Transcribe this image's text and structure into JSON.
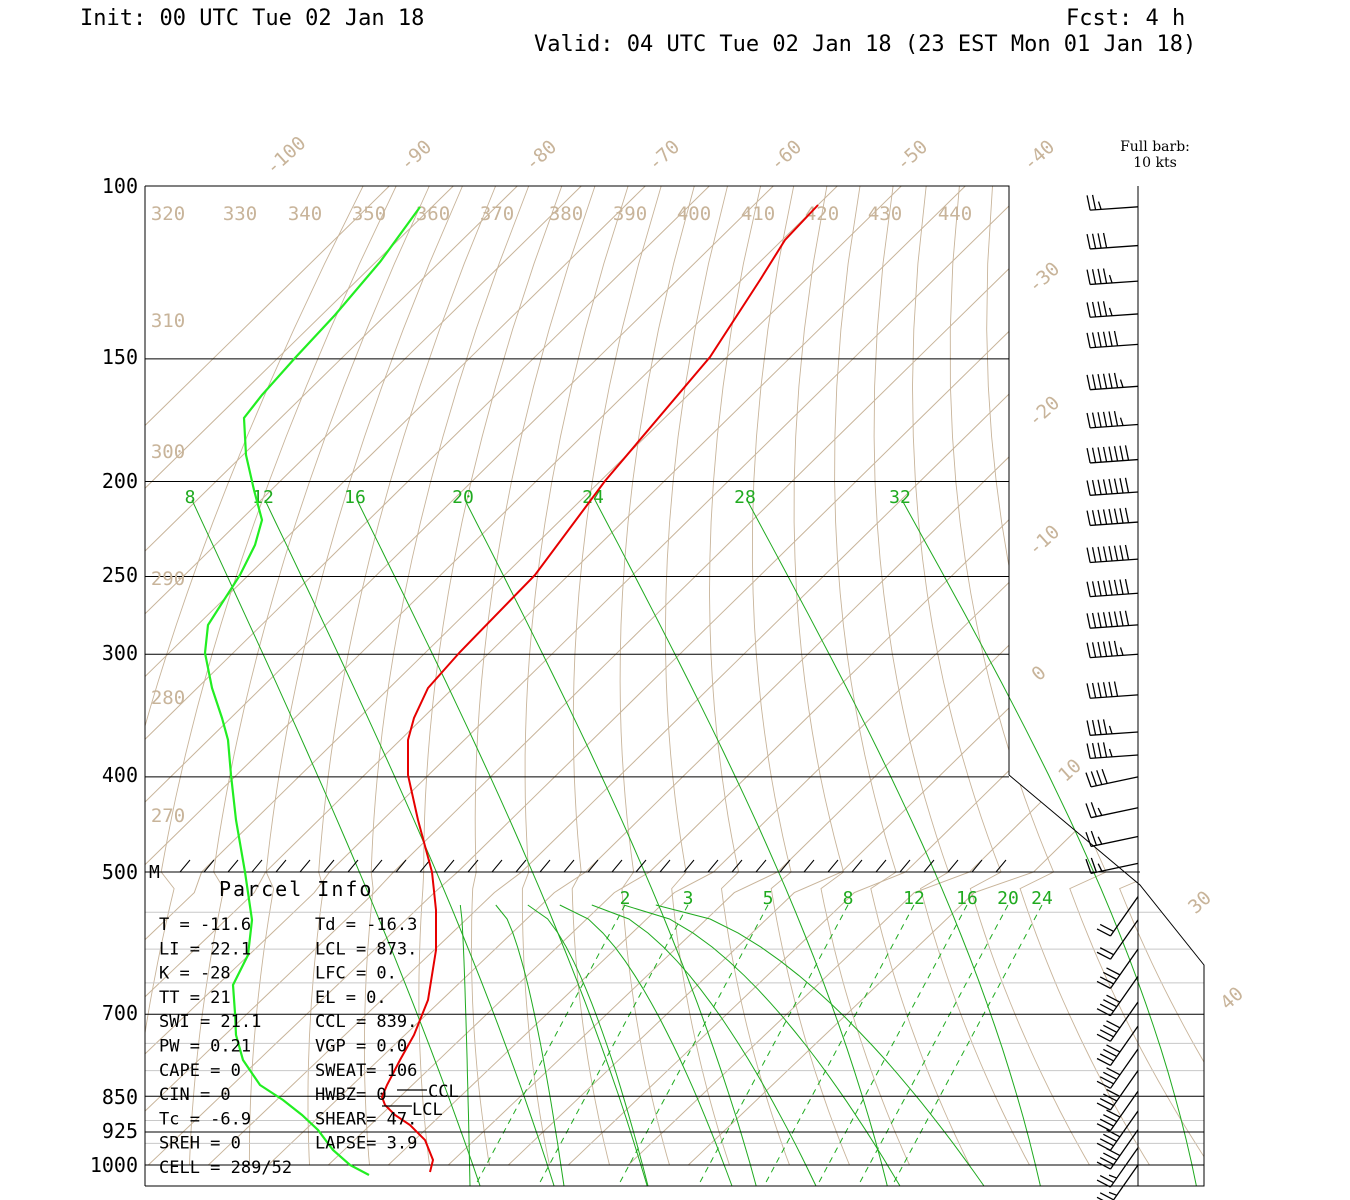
{
  "header": {
    "init": "Init: 00 UTC Tue 02 Jan 18",
    "fcst": "Fcst:    4 h",
    "valid": "Valid: 04 UTC Tue 02 Jan 18 (23 EST Mon 01 Jan 18)"
  },
  "barb_legend": {
    "line1": "Full barb:",
    "line2": "10 kts"
  },
  "parcel_info": {
    "title": "Parcel Info",
    "rows": [
      [
        "T  =   -11.6",
        "Td = -16.3"
      ],
      [
        "LI =    22.1",
        "LCL =  873."
      ],
      [
        "K  =     -28",
        "LFC =    0."
      ],
      [
        "TT =      21",
        "EL  =    0."
      ],
      [
        "SWI =   21.1",
        "CCL =  839."
      ],
      [
        "PW =    0.21",
        "VGP =   0.0"
      ],
      [
        "CAPE =     0",
        "SWEAT=  106"
      ],
      [
        "CIN =      0",
        "HWBZ=     0"
      ],
      [
        "Tc =    -6.9",
        "SHEAR=  47."
      ],
      [
        "SREH =     0",
        "LAPSE=  3.9"
      ],
      [
        "CELL = 289/52",
        ""
      ]
    ],
    "marker_M": "M",
    "ccl_label": "CCL",
    "lcl_label": "LCL"
  },
  "colors": {
    "temperature": "#e60000",
    "dewpoint": "#22ee22",
    "isotherm": "#c8b49a",
    "mixing_ratio": "#1faa1f",
    "isobar": "#000000"
  },
  "chart_data": {
    "type": "skew-t log-p sounding",
    "y_axis": "pressure (hPa), log scale",
    "pressure_labels": [
      "100",
      "150",
      "200",
      "250",
      "300",
      "400",
      "500",
      "700",
      "850",
      "925",
      "1000"
    ],
    "isotherm_labels": [
      "-100",
      "-90",
      "-80",
      "-70",
      "-60",
      "-50",
      "-40",
      "-30",
      "-20",
      "-10",
      "0",
      "10",
      "30",
      "40"
    ],
    "theta_labels": [
      "320",
      "330",
      "340",
      "350",
      "360",
      "370",
      "380",
      "390",
      "400",
      "410",
      "420",
      "430",
      "440",
      "310",
      "300",
      "290",
      "280",
      "270"
    ],
    "mixing_ratio_labels_upper": [
      "8",
      "12",
      "16",
      "20",
      "24",
      "28",
      "32"
    ],
    "mixing_ratio_labels_lower": [
      "2",
      "3",
      "5",
      "8",
      "12",
      "16",
      "20",
      "24"
    ],
    "temperature_profile_C": [
      {
        "p": 1000,
        "t": -11.6
      },
      {
        "p": 925,
        "t": -11.4
      },
      {
        "p": 850,
        "t": -10.5
      },
      {
        "p": 780,
        "t": -15
      },
      {
        "p": 700,
        "t": -20
      },
      {
        "p": 600,
        "t": -27
      },
      {
        "p": 500,
        "t": -34
      },
      {
        "p": 400,
        "t": -45
      },
      {
        "p": 350,
        "t": -51
      },
      {
        "p": 320,
        "t": -53
      },
      {
        "p": 300,
        "t": -53
      },
      {
        "p": 250,
        "t": -52
      },
      {
        "p": 200,
        "t": -53
      },
      {
        "p": 150,
        "t": -55
      },
      {
        "p": 120,
        "t": -58
      },
      {
        "p": 105,
        "t": -60
      }
    ],
    "dewpoint_profile_C": [
      {
        "p": 1000,
        "t": -16.3
      },
      {
        "p": 925,
        "t": -19
      },
      {
        "p": 850,
        "t": -22
      },
      {
        "p": 780,
        "t": -29
      },
      {
        "p": 700,
        "t": -36
      },
      {
        "p": 600,
        "t": -38
      },
      {
        "p": 500,
        "t": -45
      },
      {
        "p": 400,
        "t": -61
      },
      {
        "p": 300,
        "t": -74
      },
      {
        "p": 250,
        "t": -74
      },
      {
        "p": 220,
        "t": -72
      },
      {
        "p": 200,
        "t": -76
      },
      {
        "p": 180,
        "t": -81
      },
      {
        "p": 150,
        "t": -83
      },
      {
        "p": 120,
        "t": -86
      },
      {
        "p": 105,
        "t": -89
      }
    ],
    "wind_barbs": [
      {
        "p": 105,
        "barbs": 3,
        "flags": 0
      },
      {
        "p": 115,
        "barbs": 4,
        "flags": 0
      },
      {
        "p": 125,
        "barbs": 5,
        "flags": 0
      },
      {
        "p": 135,
        "barbs": 5,
        "flags": 0
      },
      {
        "p": 145,
        "barbs": 6,
        "flags": 0
      },
      {
        "p": 160,
        "barbs": 7,
        "flags": 0
      },
      {
        "p": 175,
        "barbs": 7,
        "flags": 0
      },
      {
        "p": 190,
        "barbs": 8,
        "flags": 0
      },
      {
        "p": 205,
        "barbs": 8,
        "flags": 0
      },
      {
        "p": 220,
        "barbs": 8,
        "flags": 0
      },
      {
        "p": 240,
        "barbs": 8,
        "flags": 0
      },
      {
        "p": 260,
        "barbs": 8,
        "flags": 0
      },
      {
        "p": 280,
        "barbs": 8,
        "flags": 0
      },
      {
        "p": 300,
        "barbs": 7,
        "flags": 0
      },
      {
        "p": 330,
        "barbs": 6,
        "flags": 0
      },
      {
        "p": 360,
        "barbs": 5,
        "flags": 0
      },
      {
        "p": 380,
        "barbs": 5,
        "flags": 0
      },
      {
        "p": 400,
        "barbs": 4,
        "flags": 0
      },
      {
        "p": 430,
        "barbs": 3,
        "flags": 0
      },
      {
        "p": 460,
        "barbs": 3,
        "flags": 0
      },
      {
        "p": 490,
        "barbs": 3,
        "flags": 0
      },
      {
        "p": 530,
        "barbs": 2,
        "flags": 0
      },
      {
        "p": 560,
        "barbs": 2,
        "flags": 0
      },
      {
        "p": 600,
        "barbs": 4,
        "flags": 0
      },
      {
        "p": 640,
        "barbs": 4,
        "flags": 0
      },
      {
        "p": 680,
        "barbs": 4,
        "flags": 0
      },
      {
        "p": 720,
        "barbs": 4,
        "flags": 0
      },
      {
        "p": 760,
        "barbs": 4,
        "flags": 0
      },
      {
        "p": 800,
        "barbs": 4,
        "flags": 0
      },
      {
        "p": 840,
        "barbs": 4,
        "flags": 0
      },
      {
        "p": 880,
        "barbs": 4,
        "flags": 0
      },
      {
        "p": 920,
        "barbs": 4,
        "flags": 0
      },
      {
        "p": 960,
        "barbs": 3,
        "flags": 0
      },
      {
        "p": 1000,
        "barbs": 3,
        "flags": 0
      }
    ]
  }
}
